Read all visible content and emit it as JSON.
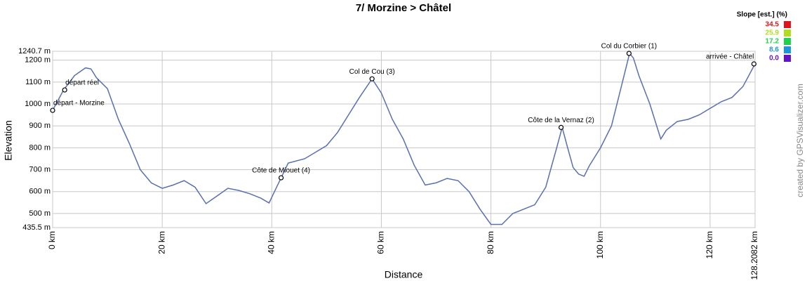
{
  "chart_data": {
    "type": "line",
    "title": "7/ Morzine > Châtel",
    "xlabel": "Distance",
    "ylabel": "Elevation",
    "credit": "created by GPSVisualizer.com",
    "grid": true,
    "xlim": [
      0,
      128.2082
    ],
    "ylim": [
      435.5,
      1240.7
    ],
    "xticks": [
      {
        "value": 0,
        "label": "0 km"
      },
      {
        "value": 20,
        "label": "20 km"
      },
      {
        "value": 40,
        "label": "40 km"
      },
      {
        "value": 60,
        "label": "60 km"
      },
      {
        "value": 80,
        "label": "80 km"
      },
      {
        "value": 100,
        "label": "100 km"
      },
      {
        "value": 120,
        "label": "120 km"
      },
      {
        "value": 128.2082,
        "label": "128.2082 km"
      }
    ],
    "yticks": [
      {
        "value": 435.5,
        "label": "435.5 m"
      },
      {
        "value": 500,
        "label": "500 m"
      },
      {
        "value": 600,
        "label": "600 m"
      },
      {
        "value": 700,
        "label": "700 m"
      },
      {
        "value": 800,
        "label": "800 m"
      },
      {
        "value": 900,
        "label": "900 m"
      },
      {
        "value": 1000,
        "label": "1000 m"
      },
      {
        "value": 1100,
        "label": "1100 m"
      },
      {
        "value": 1200,
        "label": "1200 m"
      },
      {
        "value": 1240.7,
        "label": "1240.7 m"
      }
    ],
    "x": [
      0,
      2,
      4,
      6,
      7,
      8,
      10,
      12,
      14,
      16,
      18,
      20,
      22,
      24,
      26,
      28,
      30,
      32,
      34,
      36,
      38,
      39.5,
      41.7,
      43,
      46,
      48,
      50,
      52,
      54,
      56,
      58.3,
      60,
      62,
      64,
      66,
      68,
      70,
      72,
      74,
      76,
      78,
      80,
      82,
      84,
      86,
      88,
      90,
      92,
      93,
      94,
      95,
      96,
      97,
      98,
      100,
      102,
      104,
      105.3,
      106,
      107,
      109,
      110,
      111,
      112,
      114,
      116,
      118,
      120,
      122,
      124,
      126,
      128.2
    ],
    "series": [
      {
        "name": "Elevation",
        "color": "#5a6fb0",
        "values": [
          971,
          1064,
          1130,
          1165,
          1160,
          1120,
          1070,
          930,
          820,
          700,
          640,
          615,
          630,
          650,
          620,
          545,
          580,
          615,
          605,
          590,
          570,
          548,
          663,
          730,
          750,
          780,
          810,
          870,
          950,
          1030,
          1115,
          1050,
          930,
          840,
          720,
          630,
          640,
          660,
          650,
          600,
          520,
          450,
          450,
          500,
          520,
          540,
          620,
          800,
          893,
          800,
          710,
          680,
          670,
          720,
          800,
          900,
          1100,
          1231,
          1210,
          1130,
          1000,
          920,
          840,
          880,
          920,
          930,
          950,
          980,
          1010,
          1030,
          1080,
          1183
        ]
      }
    ],
    "annotations": [
      {
        "label": "départ - Morzine",
        "x": 0,
        "y": 971
      },
      {
        "label": "départ réel",
        "x": 2.2,
        "y": 1064
      },
      {
        "label": "Côte de Miouet (4)",
        "x": 41.7,
        "y": 663
      },
      {
        "label": "Col de Cou (3)",
        "x": 58.3,
        "y": 1115
      },
      {
        "label": "Côte de la Vernaz (2)",
        "x": 92.8,
        "y": 893
      },
      {
        "label": "Col du Corbier (1)",
        "x": 105.2,
        "y": 1231
      },
      {
        "label": "arrivée - Châtel",
        "x": 128.0,
        "y": 1183
      }
    ],
    "slope_legend": {
      "title": "Slope [est.] (%)",
      "items": [
        {
          "label": "34.5",
          "color": "#e0141e"
        },
        {
          "label": "25.9",
          "color": "#b4dc1e"
        },
        {
          "label": "17.2",
          "color": "#1ed250"
        },
        {
          "label": "8.6",
          "color": "#1e96dc"
        },
        {
          "label": "0.0",
          "color": "#6414c8"
        }
      ]
    }
  }
}
